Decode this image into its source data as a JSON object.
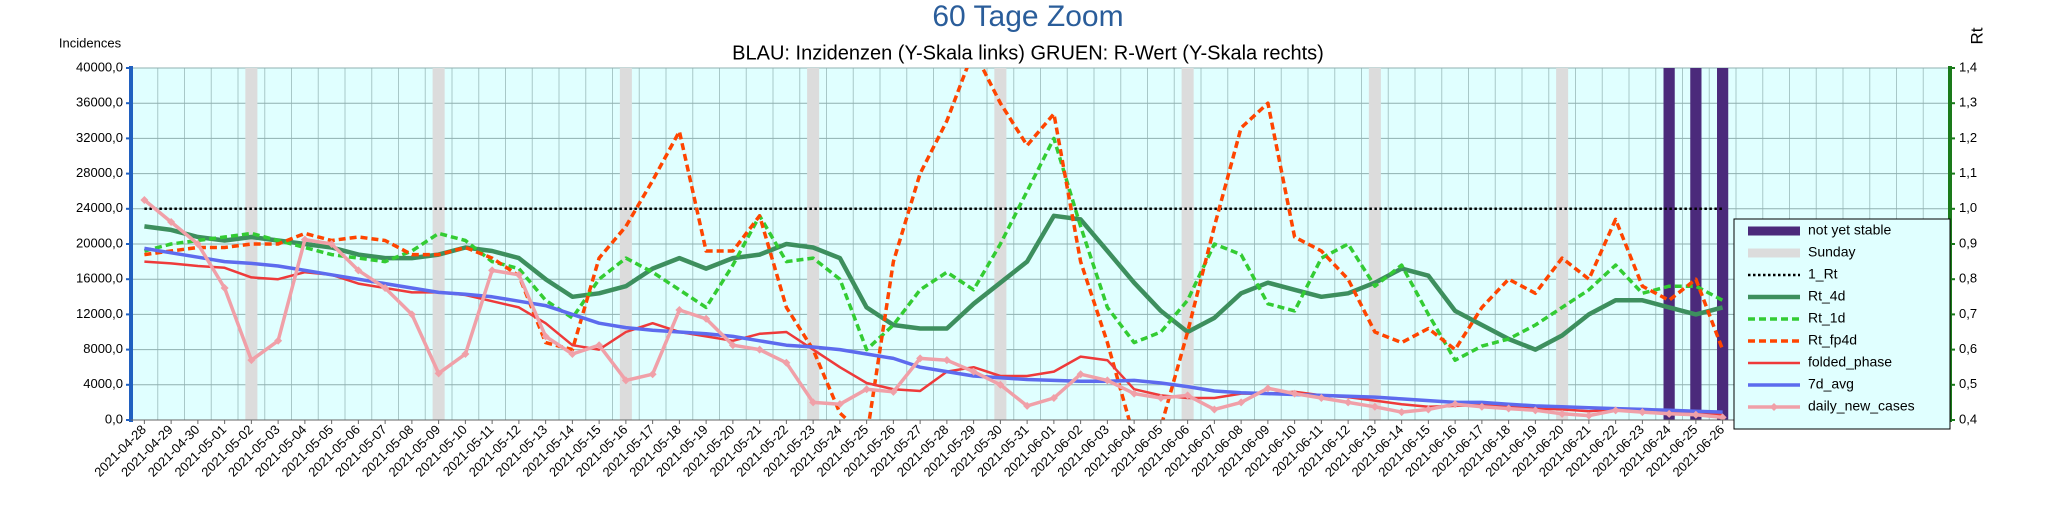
{
  "chart_data": {
    "type": "line",
    "title": "60 Tage Zoom",
    "subtitle": "BLAU: Inzidenzen (Y-Skala links)     GRUEN: R-Wert (Y-Skala rechts)",
    "y_label": "Incidences",
    "y2_label": "Rt",
    "categories": [
      "2021-04-28",
      "2021-04-29",
      "2021-04-30",
      "2021-05-01",
      "2021-05-02",
      "2021-05-03",
      "2021-05-04",
      "2021-05-05",
      "2021-05-06",
      "2021-05-07",
      "2021-05-08",
      "2021-05-09",
      "2021-05-10",
      "2021-05-11",
      "2021-05-12",
      "2021-05-13",
      "2021-05-14",
      "2021-05-15",
      "2021-05-16",
      "2021-05-17",
      "2021-05-18",
      "2021-05-19",
      "2021-05-20",
      "2021-05-21",
      "2021-05-22",
      "2021-05-23",
      "2021-05-24",
      "2021-05-25",
      "2021-05-26",
      "2021-05-27",
      "2021-05-28",
      "2021-05-29",
      "2021-05-30",
      "2021-05-31",
      "2021-06-01",
      "2021-06-02",
      "2021-06-03",
      "2021-06-04",
      "2021-06-05",
      "2021-06-06",
      "2021-06-07",
      "2021-06-08",
      "2021-06-09",
      "2021-06-10",
      "2021-06-11",
      "2021-06-12",
      "2021-06-13",
      "2021-06-14",
      "2021-06-15",
      "2021-06-16",
      "2021-06-17",
      "2021-06-18",
      "2021-06-19",
      "2021-06-20",
      "2021-06-21",
      "2021-06-22",
      "2021-06-23",
      "2021-06-24",
      "2021-06-25",
      "2021-06-26",
      null,
      null,
      null,
      null,
      null,
      null,
      null,
      null
    ],
    "ylim": [
      0,
      40000
    ],
    "yticks": [
      {
        "value": 0,
        "label": "0,0"
      },
      {
        "value": 4000,
        "label": "4000,0"
      },
      {
        "value": 8000,
        "label": "8000,0"
      },
      {
        "value": 12000,
        "label": "12000,0"
      },
      {
        "value": 16000,
        "label": "16000,0"
      },
      {
        "value": 20000,
        "label": "20000,0"
      },
      {
        "value": 24000,
        "label": "24000,0"
      },
      {
        "value": 28000,
        "label": "28000,0"
      },
      {
        "value": 32000,
        "label": "32000,0"
      },
      {
        "value": 36000,
        "label": "36000,0"
      },
      {
        "value": 40000,
        "label": "40000,0"
      }
    ],
    "y2lim": [
      0.4,
      1.4
    ],
    "y2ticks": [
      {
        "value": 0.4,
        "label": "0,4"
      },
      {
        "value": 0.5,
        "label": "0,5"
      },
      {
        "value": 0.6,
        "label": "0,6"
      },
      {
        "value": 0.7,
        "label": "0,7"
      },
      {
        "value": 0.8,
        "label": "0,8"
      },
      {
        "value": 0.9,
        "label": "0,9"
      },
      {
        "value": 1.0,
        "label": "1,0"
      },
      {
        "value": 1.1,
        "label": "1,1"
      },
      {
        "value": 1.2,
        "label": "1,2"
      },
      {
        "value": 1.3,
        "label": "1,3"
      },
      {
        "value": 1.4,
        "label": "1,4"
      }
    ],
    "grid": true,
    "legend": "right",
    "series": [
      {
        "name": "not yet stable",
        "kind": "bar",
        "axis": "y2",
        "color": "#4b2a7b",
        "values": [
          null,
          null,
          null,
          null,
          null,
          null,
          null,
          null,
          null,
          null,
          null,
          null,
          null,
          null,
          null,
          null,
          null,
          null,
          null,
          null,
          null,
          null,
          null,
          null,
          null,
          null,
          null,
          null,
          null,
          null,
          null,
          null,
          null,
          null,
          null,
          null,
          null,
          null,
          null,
          null,
          null,
          null,
          null,
          null,
          null,
          null,
          null,
          null,
          null,
          null,
          null,
          null,
          null,
          null,
          null,
          null,
          null,
          1.4,
          1.4,
          1.4,
          null,
          null,
          null,
          null,
          null,
          null,
          null,
          null
        ]
      },
      {
        "name": "Sunday",
        "kind": "bar",
        "axis": "y2",
        "color": "#dcdcdc",
        "values": [
          null,
          null,
          null,
          null,
          1.4,
          null,
          null,
          null,
          null,
          null,
          null,
          1.4,
          null,
          null,
          null,
          null,
          null,
          null,
          1.4,
          null,
          null,
          null,
          null,
          null,
          null,
          1.4,
          null,
          null,
          null,
          null,
          null,
          null,
          1.4,
          null,
          null,
          null,
          null,
          null,
          null,
          1.4,
          null,
          null,
          null,
          null,
          null,
          null,
          1.4,
          null,
          null,
          null,
          null,
          null,
          null,
          1.4,
          null,
          null,
          null,
          null,
          null,
          null,
          null,
          null,
          null,
          null,
          null,
          null,
          null,
          null
        ]
      },
      {
        "name": "1_Rt",
        "axis": "y2",
        "style": "dotted",
        "color": "#000000",
        "values": [
          1,
          1,
          1,
          1,
          1,
          1,
          1,
          1,
          1,
          1,
          1,
          1,
          1,
          1,
          1,
          1,
          1,
          1,
          1,
          1,
          1,
          1,
          1,
          1,
          1,
          1,
          1,
          1,
          1,
          1,
          1,
          1,
          1,
          1,
          1,
          1,
          1,
          1,
          1,
          1,
          1,
          1,
          1,
          1,
          1,
          1,
          1,
          1,
          1,
          1,
          1,
          1,
          1,
          1,
          1,
          1,
          1,
          1,
          1,
          1,
          null,
          null,
          null,
          null,
          null,
          null,
          null,
          null
        ]
      },
      {
        "name": "Rt_4d",
        "axis": "y2",
        "style": "solid",
        "color": "#3d8f5e",
        "values": [
          0.95,
          0.94,
          0.92,
          0.91,
          0.92,
          0.91,
          0.9,
          0.89,
          0.87,
          0.86,
          0.86,
          0.87,
          0.89,
          0.88,
          0.86,
          0.8,
          0.75,
          0.76,
          0.78,
          0.83,
          0.86,
          0.83,
          0.86,
          0.87,
          0.9,
          0.89,
          0.86,
          0.72,
          0.67,
          0.66,
          0.66,
          0.73,
          0.79,
          0.85,
          0.98,
          0.97,
          0.88,
          0.79,
          0.71,
          0.65,
          0.69,
          0.76,
          0.79,
          0.77,
          0.75,
          0.76,
          0.79,
          0.83,
          0.81,
          0.71,
          0.67,
          0.63,
          0.6,
          0.64,
          0.7,
          0.74,
          0.74,
          0.72,
          0.7,
          0.72,
          null,
          null,
          null,
          null,
          null,
          null,
          null,
          null
        ]
      },
      {
        "name": "Rt_1d",
        "axis": "y2",
        "style": "dashed",
        "color": "#33cc33",
        "values": [
          0.88,
          0.9,
          0.91,
          0.92,
          0.93,
          0.91,
          0.89,
          0.87,
          0.86,
          0.85,
          0.88,
          0.93,
          0.91,
          0.85,
          0.83,
          0.74,
          0.69,
          0.8,
          0.86,
          0.82,
          0.77,
          0.72,
          0.84,
          0.98,
          0.85,
          0.86,
          0.8,
          0.6,
          0.67,
          0.77,
          0.82,
          0.77,
          0.9,
          1.05,
          1.2,
          0.95,
          0.72,
          0.62,
          0.65,
          0.74,
          0.9,
          0.87,
          0.73,
          0.71,
          0.86,
          0.9,
          0.78,
          0.84,
          0.7,
          0.57,
          0.61,
          0.63,
          0.67,
          0.72,
          0.77,
          0.84,
          0.76,
          0.78,
          0.78,
          0.74,
          null,
          null,
          null,
          null,
          null,
          null,
          null,
          null
        ]
      },
      {
        "name": "Rt_fp4d",
        "axis": "y2",
        "style": "dashed",
        "color": "#ff4500",
        "values": [
          0.87,
          0.88,
          0.89,
          0.89,
          0.9,
          0.9,
          0.93,
          0.91,
          0.92,
          0.91,
          0.87,
          0.87,
          0.89,
          0.86,
          0.81,
          0.62,
          0.6,
          0.86,
          0.95,
          1.08,
          1.22,
          0.88,
          0.88,
          0.98,
          0.72,
          0.6,
          0.42,
          0.35,
          0.85,
          1.1,
          1.25,
          1.45,
          1.3,
          1.18,
          1.27,
          0.85,
          0.62,
          0.35,
          0.38,
          0.65,
          0.95,
          1.23,
          1.3,
          0.92,
          0.88,
          0.8,
          0.65,
          0.62,
          0.66,
          0.6,
          0.72,
          0.8,
          0.76,
          0.86,
          0.8,
          0.97,
          0.78,
          0.74,
          0.8,
          0.6,
          null,
          null,
          null,
          null,
          null,
          null,
          null,
          null
        ]
      },
      {
        "name": "folded_phase",
        "style": "solid",
        "color": "#ee3a3a",
        "values": [
          18000,
          17800,
          17500,
          17300,
          16200,
          16000,
          16800,
          16500,
          15500,
          15000,
          14500,
          14500,
          14200,
          13500,
          12800,
          11000,
          8500,
          8000,
          10000,
          11000,
          10000,
          9500,
          9000,
          9800,
          10000,
          8000,
          6000,
          4200,
          3500,
          3300,
          5500,
          6000,
          5000,
          5000,
          5500,
          7200,
          6800,
          3500,
          2800,
          2500,
          2500,
          3000,
          3000,
          3200,
          2800,
          2600,
          2200,
          1800,
          1500,
          1600,
          1700,
          1500,
          1300,
          1200,
          1000,
          1200,
          1100,
          900,
          900,
          600,
          null,
          null,
          null,
          null,
          null,
          null,
          null,
          null
        ]
      },
      {
        "name": "7d_avg",
        "style": "solid",
        "color": "#5d6bee",
        "values": [
          19500,
          19000,
          18500,
          18000,
          17800,
          17500,
          17000,
          16500,
          16000,
          15500,
          15000,
          14500,
          14300,
          14000,
          13500,
          13000,
          12000,
          11000,
          10500,
          10200,
          10000,
          9800,
          9500,
          9000,
          8500,
          8300,
          8000,
          7500,
          7000,
          6000,
          5500,
          5000,
          4800,
          4600,
          4500,
          4400,
          4400,
          4500,
          4200,
          3800,
          3300,
          3100,
          3000,
          2900,
          2800,
          2700,
          2600,
          2400,
          2200,
          2000,
          2000,
          1800,
          1600,
          1500,
          1400,
          1300,
          1200,
          1100,
          1000,
          900,
          null,
          null,
          null,
          null,
          null,
          null,
          null,
          null
        ]
      },
      {
        "name": "daily_new_cases",
        "style": "solid",
        "marker": "diamond",
        "color": "#f0a0a8",
        "values": [
          25000,
          22500,
          20000,
          15000,
          6800,
          9000,
          20500,
          20000,
          17000,
          15000,
          12000,
          5300,
          7500,
          17000,
          16500,
          9500,
          7500,
          8500,
          4500,
          5200,
          12500,
          11500,
          8500,
          8000,
          6500,
          2000,
          1800,
          3500,
          3200,
          7000,
          6800,
          5500,
          4000,
          1600,
          2500,
          5200,
          4500,
          3000,
          2500,
          2800,
          1200,
          2000,
          3600,
          3000,
          2500,
          2000,
          1500,
          900,
          1200,
          1800,
          1500,
          1300,
          1100,
          700,
          500,
          1100,
          900,
          700,
          600,
          300,
          null,
          null,
          null,
          null,
          null,
          null,
          null,
          null
        ]
      }
    ]
  }
}
